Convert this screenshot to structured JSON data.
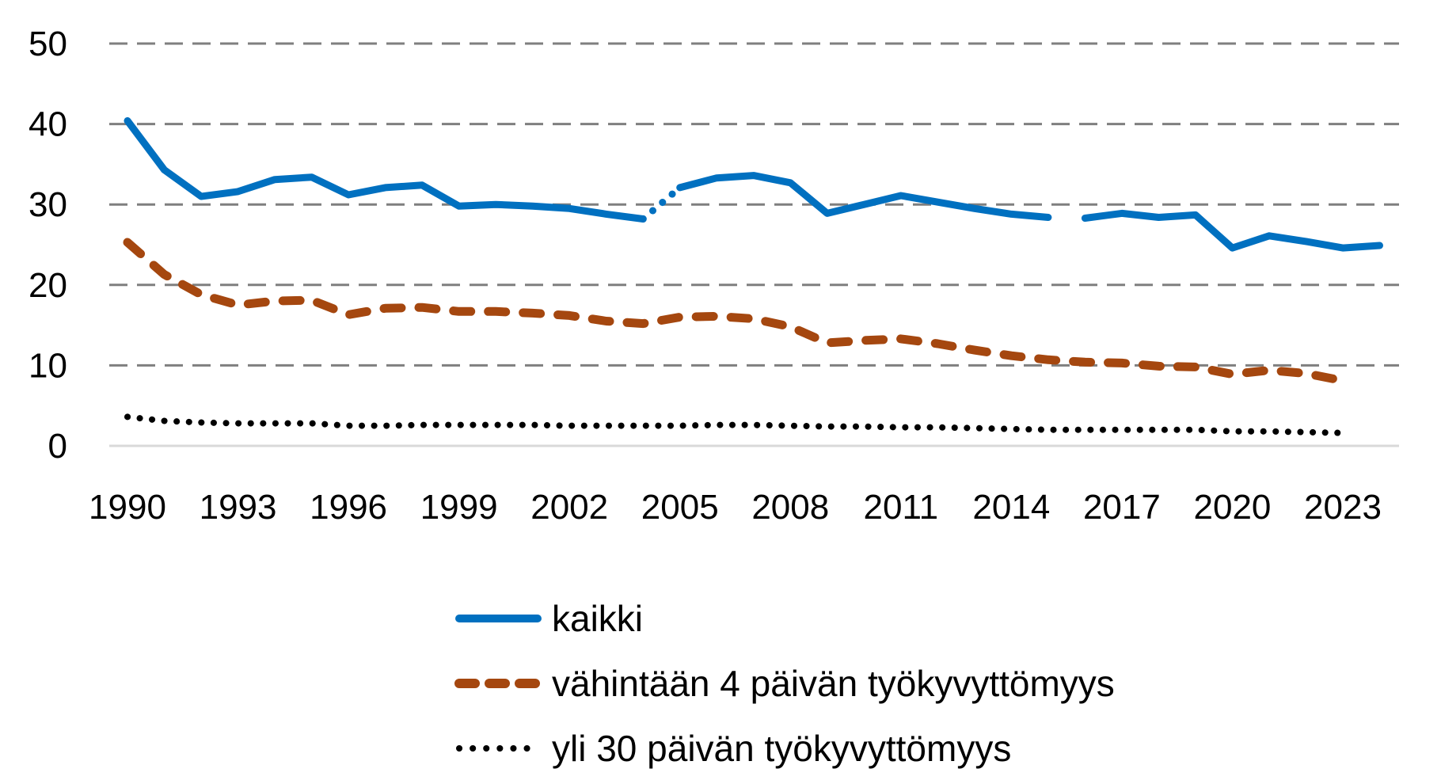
{
  "chart_data": {
    "type": "line",
    "title": "",
    "xlabel": "",
    "ylabel": "",
    "ylim": [
      0,
      50
    ],
    "yticks": [
      0,
      10,
      20,
      30,
      40,
      50
    ],
    "grid": "horizontal dashed",
    "legend_position": "bottom",
    "x": [
      1990,
      1991,
      1992,
      1993,
      1994,
      1995,
      1996,
      1997,
      1998,
      1999,
      2000,
      2001,
      2002,
      2003,
      2004,
      2005,
      2006,
      2007,
      2008,
      2009,
      2010,
      2011,
      2012,
      2013,
      2014,
      2015,
      2016,
      2017,
      2018,
      2019,
      2020,
      2021,
      2022,
      2023,
      2024
    ],
    "xtick_labels": [
      "1990",
      "1993",
      "1996",
      "1999",
      "2002",
      "2005",
      "2008",
      "2011",
      "2014",
      "2017",
      "2020",
      "2023"
    ],
    "series": [
      {
        "name": "kaikki",
        "color": "#0070C0",
        "style": "solid",
        "values": [
          40.4,
          34.3,
          31.0,
          31.6,
          33.1,
          33.4,
          31.2,
          32.1,
          32.4,
          29.8,
          30.0,
          29.8,
          29.5,
          28.8,
          28.2,
          32.1,
          33.3,
          33.6,
          32.7,
          28.9,
          30.0,
          31.1,
          30.3,
          29.5,
          28.8,
          28.4,
          28.3,
          28.9,
          28.4,
          28.7,
          24.6,
          26.1,
          25.4,
          24.6,
          24.9
        ],
        "breaks_after": [
          2004,
          2015
        ]
      },
      {
        "name": "vähintään 4 päivän työkyvyttömyys",
        "color": "#A5470F",
        "style": "dashed",
        "values": [
          25.3,
          21.3,
          18.8,
          17.5,
          18.0,
          18.1,
          16.3,
          17.1,
          17.2,
          16.7,
          16.7,
          16.5,
          16.2,
          15.5,
          15.2,
          16.0,
          16.1,
          15.8,
          14.8,
          12.8,
          13.1,
          13.3,
          12.7,
          11.9,
          11.2,
          10.7,
          10.4,
          10.3,
          9.9,
          9.8,
          8.9,
          9.4,
          9.0,
          8.1,
          null
        ]
      },
      {
        "name": "yli 30 päivän työkyvyttömyys",
        "color": "#000000",
        "style": "dotted",
        "values": [
          3.6,
          3.1,
          2.9,
          2.8,
          2.8,
          2.8,
          2.5,
          2.5,
          2.6,
          2.6,
          2.6,
          2.6,
          2.5,
          2.5,
          2.5,
          2.5,
          2.6,
          2.6,
          2.5,
          2.4,
          2.4,
          2.3,
          2.3,
          2.2,
          2.1,
          2.0,
          2.0,
          2.0,
          2.0,
          2.0,
          1.8,
          1.8,
          1.7,
          1.6,
          null
        ]
      }
    ]
  },
  "legend": {
    "items": [
      {
        "label": "kaikki"
      },
      {
        "label": "vähintään 4 päivän työkyvyttömyys"
      },
      {
        "label": "yli 30 päivän työkyvyttömyys"
      }
    ]
  }
}
